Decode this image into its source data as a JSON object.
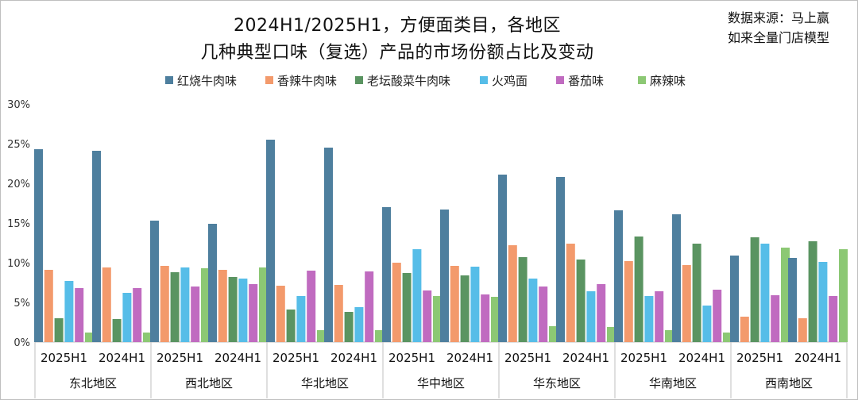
{
  "header": {
    "title_line1": "2024H1/2025H1，方便面类目，各地区",
    "title_line2": "几种典型口味（复选）产品的市场份额占比及变动",
    "source_line1": "数据来源：马上赢",
    "source_line2": "如来全量门店模型"
  },
  "chart_data": {
    "type": "bar",
    "ylim": [
      0,
      30
    ],
    "yticks": [
      "0%",
      "5%",
      "10%",
      "15%",
      "20%",
      "25%",
      "30%"
    ],
    "grid": false,
    "legend_position": "top",
    "regions": [
      "东北地区",
      "西北地区",
      "华北地区",
      "华中地区",
      "华东地区",
      "华南地区",
      "西南地区"
    ],
    "periods": [
      "2025H1",
      "2024H1"
    ],
    "series": [
      {
        "name": "红烧牛肉味",
        "color": "#4e7f9e",
        "values": [
          [
            24.3,
            24.1
          ],
          [
            15.3,
            14.9
          ],
          [
            25.5,
            24.5
          ],
          [
            17.0,
            16.7
          ],
          [
            21.1,
            20.8
          ],
          [
            16.6,
            16.1
          ],
          [
            10.9,
            10.6
          ]
        ]
      },
      {
        "name": "香辣牛肉味",
        "color": "#f39a6c",
        "values": [
          [
            9.1,
            9.4
          ],
          [
            9.6,
            9.1
          ],
          [
            7.1,
            7.2
          ],
          [
            10.0,
            9.6
          ],
          [
            12.2,
            12.4
          ],
          [
            10.2,
            9.7
          ],
          [
            3.2,
            3.0
          ]
        ]
      },
      {
        "name": "老坛酸菜牛肉味",
        "color": "#5a9461",
        "values": [
          [
            3.0,
            2.9
          ],
          [
            8.8,
            8.2
          ],
          [
            4.1,
            3.8
          ],
          [
            8.7,
            8.4
          ],
          [
            10.7,
            10.4
          ],
          [
            13.3,
            12.4
          ],
          [
            13.2,
            12.7
          ]
        ]
      },
      {
        "name": "火鸡面",
        "color": "#56bde8",
        "values": [
          [
            7.7,
            6.2
          ],
          [
            9.4,
            8.0
          ],
          [
            5.8,
            4.4
          ],
          [
            11.7,
            9.5
          ],
          [
            8.0,
            6.4
          ],
          [
            5.8,
            4.6
          ],
          [
            12.4,
            10.1
          ]
        ]
      },
      {
        "name": "番茄味",
        "color": "#c06bc0",
        "values": [
          [
            6.8,
            6.8
          ],
          [
            7.0,
            7.3
          ],
          [
            9.0,
            8.9
          ],
          [
            6.5,
            6.0
          ],
          [
            7.0,
            7.3
          ],
          [
            6.4,
            6.6
          ],
          [
            5.9,
            5.8
          ]
        ]
      },
      {
        "name": "麻辣味",
        "color": "#8cc874",
        "values": [
          [
            1.2,
            1.2
          ],
          [
            9.3,
            9.4
          ],
          [
            1.5,
            1.5
          ],
          [
            5.8,
            5.7
          ],
          [
            2.0,
            1.9
          ],
          [
            1.5,
            1.2
          ],
          [
            11.9,
            11.7
          ]
        ]
      }
    ]
  }
}
